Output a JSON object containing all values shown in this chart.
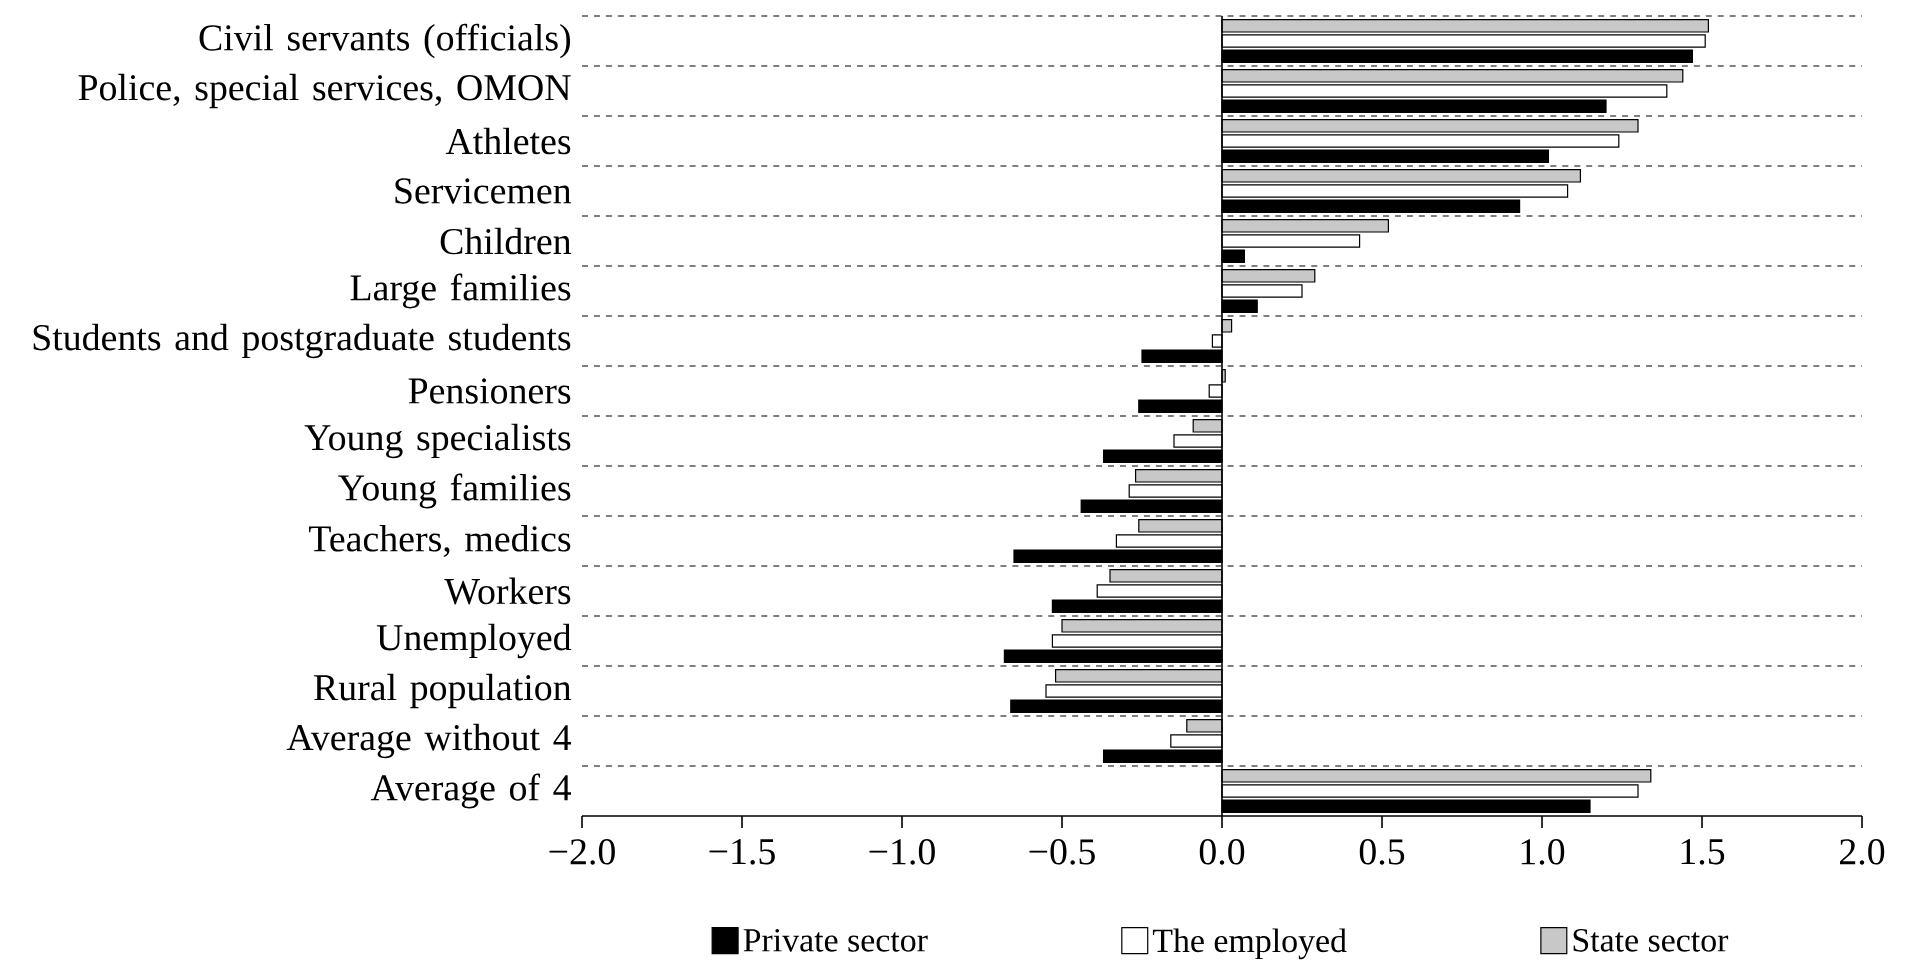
{
  "chart_data": {
    "type": "bar",
    "orientation": "horizontal",
    "categories": [
      "Civil servants (officials)",
      "Police, special services, OMON",
      "Athletes",
      "Servicemen",
      "Children",
      "Large families",
      "Students and postgraduate students",
      "Pensioners",
      "Young specialists",
      "Young families",
      "Teachers, medics",
      "Workers",
      "Unemployed",
      "Rural population",
      "Average without 4",
      "Average of 4"
    ],
    "series": [
      {
        "name": "Private sector",
        "color": "#000000",
        "values": [
          1.47,
          1.2,
          1.02,
          0.93,
          0.07,
          0.11,
          -0.25,
          -0.26,
          -0.37,
          -0.44,
          -0.65,
          -0.53,
          -0.68,
          -0.66,
          -0.37,
          1.15
        ]
      },
      {
        "name": "The employed",
        "color": "#ffffff",
        "values": [
          1.51,
          1.39,
          1.24,
          1.08,
          0.43,
          0.25,
          -0.03,
          -0.04,
          -0.15,
          -0.29,
          -0.33,
          -0.39,
          -0.53,
          -0.55,
          -0.16,
          1.3
        ]
      },
      {
        "name": "State sector",
        "color": "#c8c8c8",
        "values": [
          1.52,
          1.44,
          1.3,
          1.12,
          0.52,
          0.29,
          0.03,
          0.01,
          -0.09,
          -0.27,
          -0.26,
          -0.35,
          -0.5,
          -0.52,
          -0.11,
          1.34
        ]
      }
    ],
    "xlim": [
      -2.0,
      2.0
    ],
    "xticks": [
      {
        "value": -2.0,
        "label": "−2.0"
      },
      {
        "value": -1.5,
        "label": "−1.5"
      },
      {
        "value": -1.0,
        "label": "−1.0"
      },
      {
        "value": -0.5,
        "label": "−0.5"
      },
      {
        "value": 0.0,
        "label": "0.0"
      },
      {
        "value": 0.5,
        "label": "0.5"
      },
      {
        "value": 1.0,
        "label": "1.0"
      },
      {
        "value": 1.5,
        "label": "1.5"
      },
      {
        "value": 2.0,
        "label": "2.0"
      }
    ],
    "grid": "y",
    "legend": "bottom"
  }
}
